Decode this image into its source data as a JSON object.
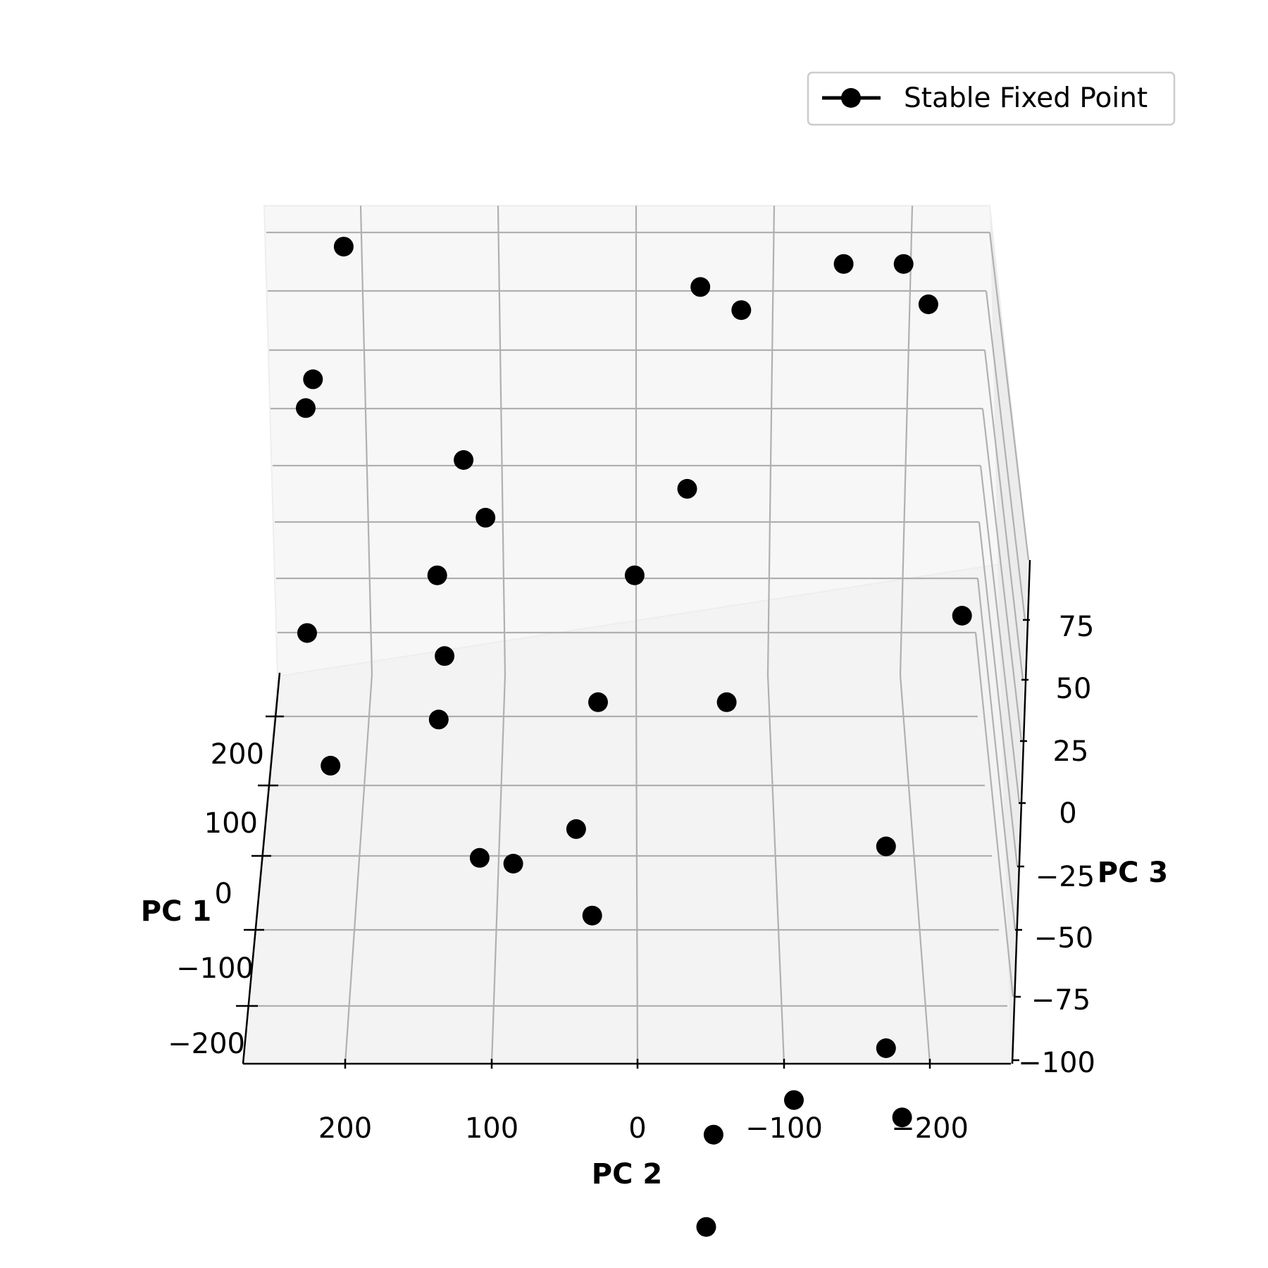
{
  "chart_data": {
    "type": "scatter",
    "projection": "3d",
    "title": "",
    "axes": {
      "x": {
        "label": "PC 2",
        "ticks": [
          200,
          100,
          0,
          -100,
          -200
        ],
        "tick_labels": [
          "200",
          "100",
          "0",
          "−100",
          "−200"
        ],
        "range": [
          250,
          -250
        ],
        "direction": "decreasing left to right"
      },
      "y": {
        "label": "PC 3",
        "ticks": [
          75,
          50,
          25,
          0,
          -25,
          -50,
          -75,
          -100
        ],
        "tick_labels": [
          "75",
          "50",
          "25",
          "0",
          "−25",
          "−50",
          "−75",
          "−100"
        ],
        "range": [
          -100,
          75
        ]
      },
      "z": {
        "label": "PC 1",
        "ticks": [
          200,
          100,
          0,
          -100,
          -200
        ],
        "tick_labels": [
          "200",
          "100",
          "0",
          "−100",
          "−200"
        ],
        "range": [
          -250,
          250
        ]
      }
    },
    "grid": true,
    "legend": {
      "position": "top-right",
      "entries": [
        "Stable Fixed Point"
      ]
    },
    "series": [
      {
        "name": "Stable Fixed Point",
        "color": "#000000",
        "marker": "circle",
        "points_projected": [
          {
            "pc2": 201,
            "pc3_screen": 80
          },
          {
            "pc2": 222,
            "pc3_screen": 57
          },
          {
            "pc2": 227,
            "pc3_screen": 52
          },
          {
            "pc2": 119,
            "pc3_screen": 43
          },
          {
            "pc2": 104,
            "pc3_screen": 33
          },
          {
            "pc2": 137,
            "pc3_screen": 23
          },
          {
            "pc2": 226,
            "pc3_screen": 13
          },
          {
            "pc2": 132,
            "pc3_screen": 9
          },
          {
            "pc2": 136,
            "pc3_screen": -2
          },
          {
            "pc2": 210,
            "pc3_screen": -10
          },
          {
            "pc2": 108,
            "pc3_screen": -26
          },
          {
            "pc2": 85,
            "pc3_screen": -27
          },
          {
            "pc2": 2,
            "pc3_screen": 23
          },
          {
            "pc2": 27,
            "pc3_screen": 1
          },
          {
            "pc2": 42,
            "pc3_screen": -21
          },
          {
            "pc2": 31,
            "pc3_screen": -36
          },
          {
            "pc2": -34,
            "pc3_screen": 38
          },
          {
            "pc2": -43,
            "pc3_screen": 73
          },
          {
            "pc2": -71,
            "pc3_screen": 69
          },
          {
            "pc2": -141,
            "pc3_screen": 77
          },
          {
            "pc2": -182,
            "pc3_screen": 77
          },
          {
            "pc2": -199,
            "pc3_screen": 70
          },
          {
            "pc2": -222,
            "pc3_screen": 16
          },
          {
            "pc2": -61,
            "pc3_screen": 1
          },
          {
            "pc2": -170,
            "pc3_screen": -24
          },
          {
            "pc2": -170,
            "pc3_screen": -59
          },
          {
            "pc2": -107,
            "pc3_screen": -68
          },
          {
            "pc2": -181,
            "pc3_screen": -71
          },
          {
            "pc2": -52,
            "pc3_screen": -74
          },
          {
            "pc2": -47,
            "pc3_screen": -90
          }
        ]
      }
    ]
  }
}
